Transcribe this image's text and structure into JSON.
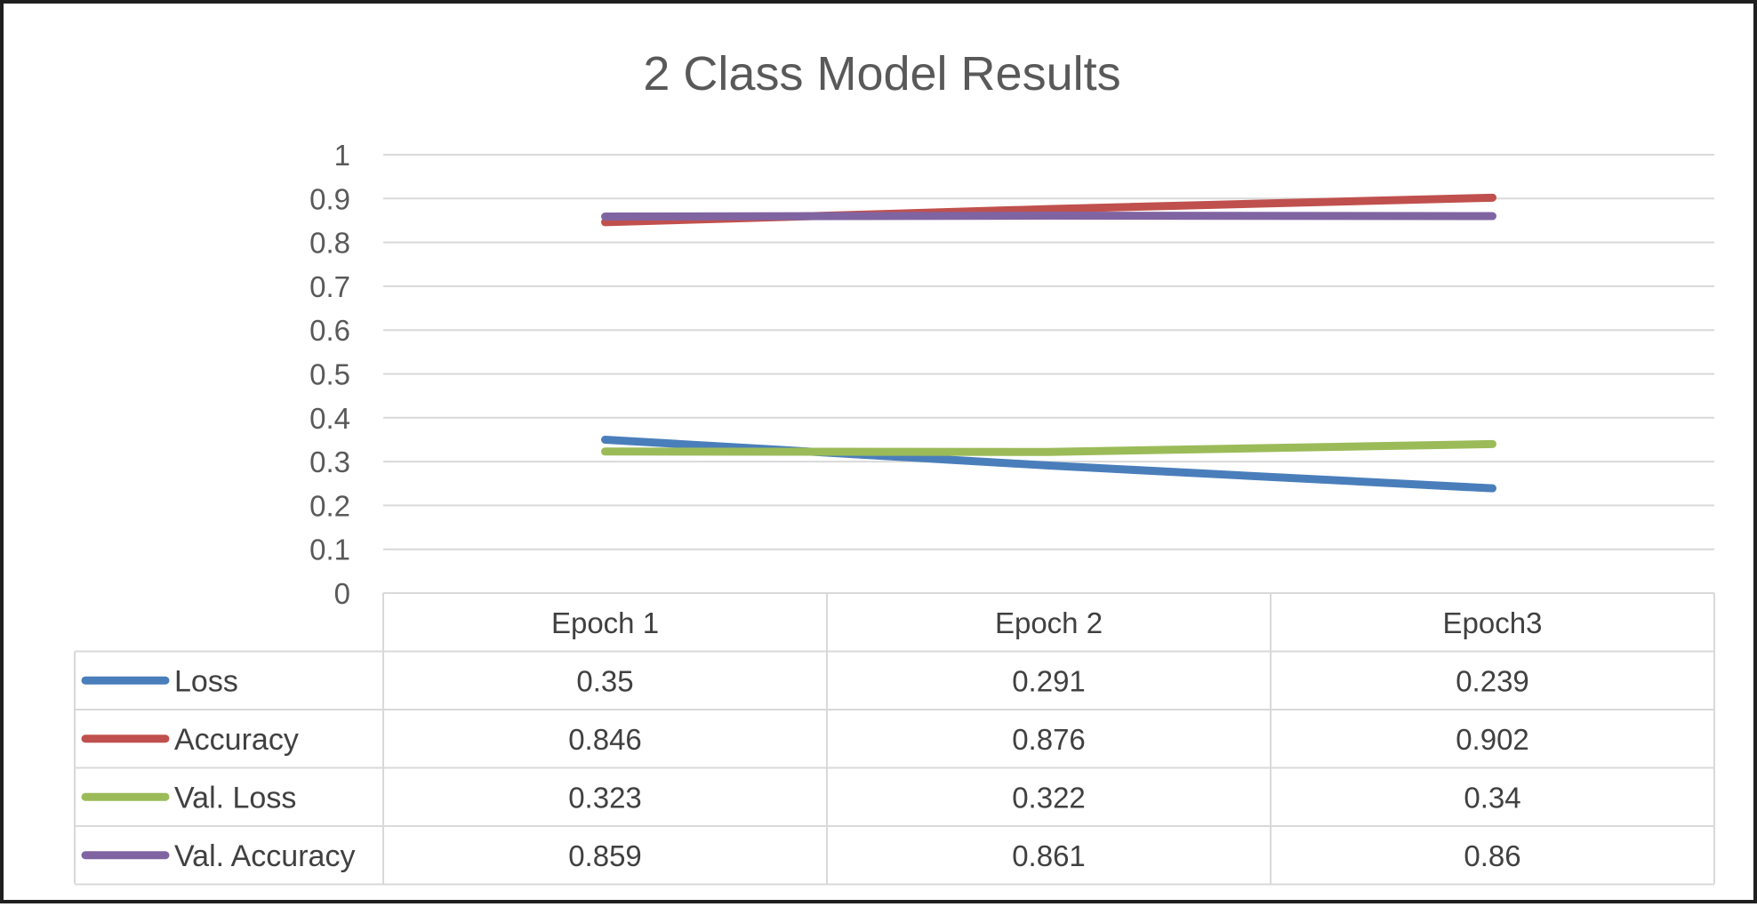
{
  "chart_data": {
    "type": "line",
    "title": "2 Class Model Results",
    "categories": [
      "Epoch 1",
      "Epoch 2",
      "Epoch3"
    ],
    "ylim": [
      0,
      1
    ],
    "yticks": [
      "0",
      "0.1",
      "0.2",
      "0.3",
      "0.4",
      "0.5",
      "0.6",
      "0.7",
      "0.8",
      "0.9",
      "1"
    ],
    "grid": true,
    "legend": "data-table",
    "series": [
      {
        "name": "Loss",
        "color": "#4a7ebb",
        "values": [
          0.35,
          0.291,
          0.239
        ],
        "labels": [
          "0.35",
          "0.291",
          "0.239"
        ]
      },
      {
        "name": "Accuracy",
        "color": "#c0504d",
        "values": [
          0.846,
          0.876,
          0.902
        ],
        "labels": [
          "0.846",
          "0.876",
          "0.902"
        ]
      },
      {
        "name": "Val. Loss",
        "color": "#9bbb59",
        "values": [
          0.323,
          0.322,
          0.34
        ],
        "labels": [
          "0.323",
          "0.322",
          "0.34"
        ]
      },
      {
        "name": "Val. Accuracy",
        "color": "#8064a2",
        "values": [
          0.859,
          0.861,
          0.86
        ],
        "labels": [
          "0.859",
          "0.861",
          "0.86"
        ]
      }
    ]
  }
}
